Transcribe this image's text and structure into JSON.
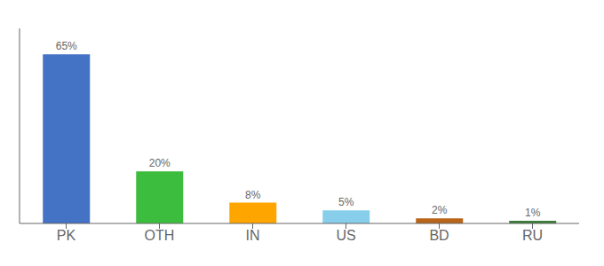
{
  "chart_data": {
    "type": "bar",
    "categories": [
      "PK",
      "OTH",
      "IN",
      "US",
      "BD",
      "RU"
    ],
    "values": [
      65,
      20,
      8,
      5,
      2,
      1
    ],
    "value_labels": [
      "65%",
      "20%",
      "8%",
      "5%",
      "2%",
      "1%"
    ],
    "colors": [
      "#4472C4",
      "#3DBD3D",
      "#FFA500",
      "#87CEEB",
      "#B8651A",
      "#3A7D3A"
    ],
    "ylim": [
      0,
      75
    ],
    "yticks": [],
    "tick_labels": "x",
    "data_labels": true,
    "grid": false
  }
}
